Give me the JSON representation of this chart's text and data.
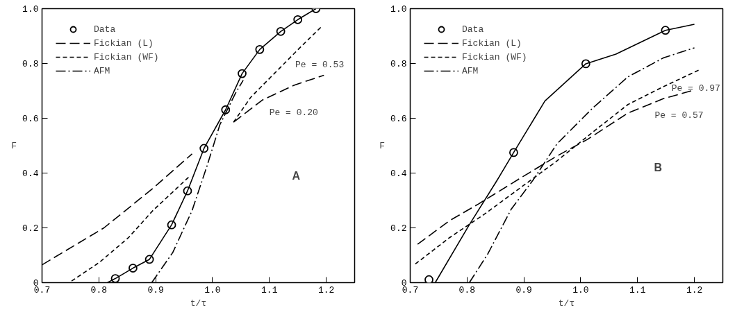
{
  "chart_data": [
    {
      "type": "line",
      "xlabel": "t/τ",
      "ylabel": "F",
      "xlim": [
        0.7,
        1.25
      ],
      "ylim": [
        0,
        1.0
      ],
      "xticks": [
        0.7,
        0.8,
        0.9,
        {
          "value": 1,
          "label": "1.0"
        },
        1.1,
        1.2
      ],
      "yticks": [
        0,
        0.2,
        0.4,
        0.6,
        0.8,
        {
          "value": 1,
          "label": "1.0"
        }
      ],
      "grid": false,
      "legend": "top left",
      "series": [
        {
          "name": "Data",
          "type": "scatter",
          "marker": "circle",
          "color": "#000000",
          "x": [
            0.829,
            0.86,
            0.889,
            0.928,
            0.956,
            0.985,
            1.023,
            1.052,
            1.083,
            1.12,
            1.15,
            1.182
          ],
          "values": [
            0.015,
            0.053,
            0.085,
            0.211,
            0.335,
            0.49,
            0.631,
            0.763,
            0.851,
            0.917,
            0.96,
            1.0
          ]
        },
        {
          "line_style": "solid",
          "color": "#000000",
          "x": [
            0.815,
            0.829,
            0.86,
            0.889,
            0.928,
            0.956,
            0.985,
            1.023,
            1.052,
            1.083,
            1.12,
            1.15,
            1.182
          ],
          "values": [
            0.0,
            0.015,
            0.053,
            0.085,
            0.211,
            0.335,
            0.49,
            0.631,
            0.763,
            0.851,
            0.917,
            0.96,
            1.0
          ]
        },
        {
          "name": "Fickian (L)",
          "line_style": "longdash",
          "color": "#000000",
          "x": [
            0.7,
            0.809,
            0.895,
            0.964,
            1.0,
            1.037,
            1.088,
            1.144,
            1.196
          ],
          "values": [
            0.065,
            0.2,
            0.344,
            0.47,
            null,
            0.586,
            0.667,
            0.721,
            0.757
          ]
        },
        {
          "name": "Fickian (WF)",
          "line_style": "dashed",
          "color": "#000000",
          "x": [
            0.752,
            0.801,
            0.852,
            0.895,
            0.96,
            1.0,
            1.037,
            1.067,
            1.11,
            1.153,
            1.191
          ],
          "values": [
            0.006,
            0.074,
            0.164,
            0.263,
            0.389,
            null,
            0.586,
            0.676,
            0.766,
            0.856,
            0.933
          ]
        },
        {
          "name": "AFM",
          "line_style": "dashdot",
          "color": "#000000",
          "x": [
            0.893,
            0.93,
            0.964,
            0.99,
            1.013,
            1.041,
            1.054
          ],
          "values": [
            0.0,
            0.11,
            0.263,
            0.424,
            0.577,
            0.694,
            0.739
          ]
        }
      ],
      "annotations": [
        "Pe = 0.53",
        "Pe = 0.20",
        "A"
      ]
    },
    {
      "type": "line",
      "xlabel": "t/τ",
      "ylabel": "F",
      "xlim": [
        0.7,
        1.25
      ],
      "ylim": [
        0,
        1.0
      ],
      "xticks": [
        0.7,
        0.8,
        0.9,
        {
          "value": 1,
          "label": "1.0"
        },
        1.1,
        1.2
      ],
      "yticks": [
        0,
        0.2,
        0.4,
        0.6,
        0.8,
        {
          "value": 1,
          "label": "1.0"
        }
      ],
      "grid": false,
      "legend": "top left",
      "series": [
        {
          "name": "Data",
          "type": "scatter",
          "marker": "circle",
          "color": "#000000",
          "x": [
            0.733,
            0.882,
            1.009,
            1.149
          ],
          "values": [
            0.011,
            0.475,
            0.799,
            0.921
          ]
        },
        {
          "line_style": "solid",
          "color": "#000000",
          "x": [
            0.744,
            0.803,
            0.853,
            0.882,
            0.937,
            1.009,
            1.062,
            1.149,
            1.2
          ],
          "values": [
            0.0,
            0.208,
            0.374,
            0.475,
            0.663,
            0.799,
            0.834,
            0.921,
            0.943
          ]
        },
        {
          "name": "Fickian (L)",
          "line_style": "longdash",
          "color": "#000000",
          "x": [
            0.713,
            0.769,
            0.82,
            0.895,
            0.958,
            1.012,
            1.083,
            1.146,
            1.2
          ],
          "values": [
            0.14,
            0.226,
            0.287,
            0.383,
            0.462,
            0.523,
            0.619,
            0.672,
            0.703
          ]
        },
        {
          "name": "Fickian (WF)",
          "line_style": "dashed",
          "color": "#000000",
          "x": [
            0.709,
            0.769,
            0.832,
            0.895,
            0.958,
            1.021,
            1.083,
            1.146,
            1.209
          ],
          "values": [
            0.068,
            0.164,
            0.252,
            0.348,
            0.444,
            0.549,
            0.65,
            0.716,
            0.777
          ]
        },
        {
          "name": "AFM",
          "line_style": "dashdot",
          "color": "#000000",
          "x": [
            0.804,
            0.836,
            0.878,
            0.916,
            0.958,
            1.021,
            1.083,
            1.146,
            1.2
          ],
          "values": [
            0.0,
            0.103,
            0.269,
            0.374,
            0.506,
            0.637,
            0.751,
            0.821,
            0.857
          ]
        }
      ],
      "annotations": [
        "Pe = 0.97",
        "Pe = 0.57",
        "B"
      ]
    }
  ]
}
